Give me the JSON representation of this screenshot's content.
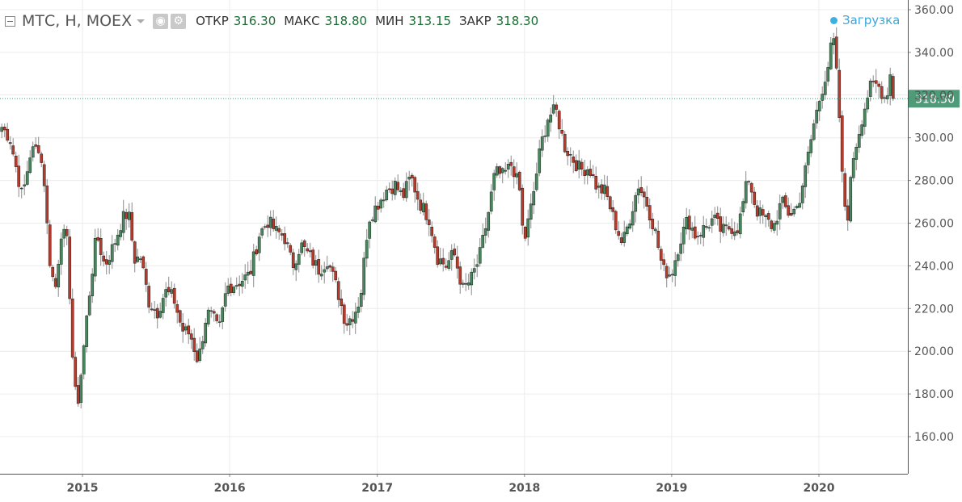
{
  "legend": {
    "symbol": "МТС, Н, MOEX",
    "ohlc": [
      {
        "label": "ОТКР",
        "value": "316.30"
      },
      {
        "label": "МАКС",
        "value": "318.80"
      },
      {
        "label": "МИН",
        "value": "313.15"
      },
      {
        "label": "ЗАКР",
        "value": "318.30"
      }
    ],
    "loading_label": "Загрузка"
  },
  "colors": {
    "up": "#47875d",
    "down": "#b83a2a",
    "wick": "#8a8a8a",
    "grid": "#ececec",
    "price_line": "#4f9a78",
    "price_badge": "#4f9a78",
    "axis": "#555555"
  },
  "chart_data": {
    "type": "candlestick",
    "interval": "weekly",
    "x_ticks": [
      "2015",
      "2016",
      "2017",
      "2018",
      "2019",
      "2020"
    ],
    "y_ticks": [
      "160.00",
      "180.00",
      "200.00",
      "220.00",
      "240.00",
      "260.00",
      "280.00",
      "300.00",
      "320.00",
      "340.00",
      "360.00"
    ],
    "ylim": [
      145,
      365
    ],
    "last_price": "318.30",
    "last_price_value": 318.3,
    "close_path": [
      [
        "2014-06-15",
        305
      ],
      [
        "2014-07-05",
        300
      ],
      [
        "2014-08-05",
        272
      ],
      [
        "2014-08-25",
        293
      ],
      [
        "2014-09-15",
        296
      ],
      [
        "2014-09-28",
        280
      ],
      [
        "2014-10-10",
        245
      ],
      [
        "2014-10-25",
        228
      ],
      [
        "2014-11-10",
        257
      ],
      [
        "2014-11-25",
        250
      ],
      [
        "2014-12-08",
        195
      ],
      [
        "2014-12-18",
        172
      ],
      [
        "2014-12-30",
        192
      ],
      [
        "2015-01-15",
        222
      ],
      [
        "2015-02-05",
        255
      ],
      [
        "2015-02-25",
        240
      ],
      [
        "2015-03-20",
        250
      ],
      [
        "2015-04-10",
        262
      ],
      [
        "2015-04-25",
        265
      ],
      [
        "2015-05-10",
        243
      ],
      [
        "2015-05-25",
        244
      ],
      [
        "2015-06-15",
        223
      ],
      [
        "2015-07-05",
        218
      ],
      [
        "2015-07-25",
        228
      ],
      [
        "2015-08-15",
        225
      ],
      [
        "2015-09-05",
        210
      ],
      [
        "2015-09-25",
        208
      ],
      [
        "2015-10-15",
        195
      ],
      [
        "2015-11-05",
        218
      ],
      [
        "2015-11-20",
        216
      ],
      [
        "2015-12-05",
        209
      ],
      [
        "2015-12-25",
        230
      ],
      [
        "2016-01-20",
        232
      ],
      [
        "2016-02-20",
        236
      ],
      [
        "2016-03-15",
        255
      ],
      [
        "2016-04-05",
        261
      ],
      [
        "2016-04-25",
        256
      ],
      [
        "2016-05-15",
        254
      ],
      [
        "2016-06-05",
        240
      ],
      [
        "2016-06-25",
        250
      ],
      [
        "2016-07-15",
        245
      ],
      [
        "2016-08-10",
        238
      ],
      [
        "2016-08-30",
        243
      ],
      [
        "2016-09-25",
        228
      ],
      [
        "2016-10-15",
        213
      ],
      [
        "2016-11-05",
        218
      ],
      [
        "2016-11-20",
        225
      ],
      [
        "2016-12-10",
        262
      ],
      [
        "2017-01-05",
        270
      ],
      [
        "2017-01-25",
        276
      ],
      [
        "2017-02-15",
        278
      ],
      [
        "2017-03-05",
        272
      ],
      [
        "2017-03-25",
        282
      ],
      [
        "2017-04-15",
        270
      ],
      [
        "2017-05-10",
        262
      ],
      [
        "2017-05-30",
        244
      ],
      [
        "2017-06-20",
        240
      ],
      [
        "2017-07-10",
        246
      ],
      [
        "2017-08-01",
        229
      ],
      [
        "2017-08-20",
        233
      ],
      [
        "2017-09-10",
        243
      ],
      [
        "2017-10-01",
        262
      ],
      [
        "2017-10-20",
        284
      ],
      [
        "2017-11-10",
        282
      ],
      [
        "2017-12-01",
        288
      ],
      [
        "2017-12-20",
        275
      ],
      [
        "2017-12-30",
        250
      ],
      [
        "2018-01-20",
        270
      ],
      [
        "2018-02-10",
        296
      ],
      [
        "2018-03-01",
        310
      ],
      [
        "2018-03-20",
        313
      ],
      [
        "2018-04-10",
        296
      ],
      [
        "2018-05-01",
        290
      ],
      [
        "2018-05-20",
        285
      ],
      [
        "2018-06-10",
        286
      ],
      [
        "2018-07-01",
        276
      ],
      [
        "2018-07-20",
        275
      ],
      [
        "2018-08-10",
        262
      ],
      [
        "2018-09-01",
        250
      ],
      [
        "2018-09-20",
        263
      ],
      [
        "2018-10-10",
        278
      ],
      [
        "2018-10-30",
        270
      ],
      [
        "2018-11-20",
        257
      ],
      [
        "2018-12-10",
        238
      ],
      [
        "2018-12-31",
        236
      ],
      [
        "2019-01-20",
        251
      ],
      [
        "2019-02-10",
        262
      ],
      [
        "2019-03-01",
        254
      ],
      [
        "2019-03-25",
        258
      ],
      [
        "2019-04-15",
        262
      ],
      [
        "2019-05-05",
        256
      ],
      [
        "2019-05-25",
        258
      ],
      [
        "2019-06-15",
        258
      ],
      [
        "2019-07-10",
        282
      ],
      [
        "2019-07-30",
        266
      ],
      [
        "2019-08-20",
        262
      ],
      [
        "2019-09-10",
        258
      ],
      [
        "2019-09-30",
        270
      ],
      [
        "2019-10-20",
        264
      ],
      [
        "2019-11-10",
        268
      ],
      [
        "2019-12-01",
        287
      ],
      [
        "2019-12-20",
        307
      ],
      [
        "2020-01-05",
        320
      ],
      [
        "2020-01-25",
        335
      ],
      [
        "2020-02-05",
        348
      ],
      [
        "2020-02-18",
        320
      ],
      [
        "2020-03-01",
        272
      ],
      [
        "2020-03-12",
        263
      ],
      [
        "2020-03-25",
        290
      ],
      [
        "2020-04-15",
        308
      ],
      [
        "2020-05-05",
        323
      ],
      [
        "2020-05-25",
        325
      ],
      [
        "2020-06-15",
        318
      ],
      [
        "2020-06-28",
        332
      ],
      [
        "2020-07-05",
        318.3
      ]
    ]
  }
}
